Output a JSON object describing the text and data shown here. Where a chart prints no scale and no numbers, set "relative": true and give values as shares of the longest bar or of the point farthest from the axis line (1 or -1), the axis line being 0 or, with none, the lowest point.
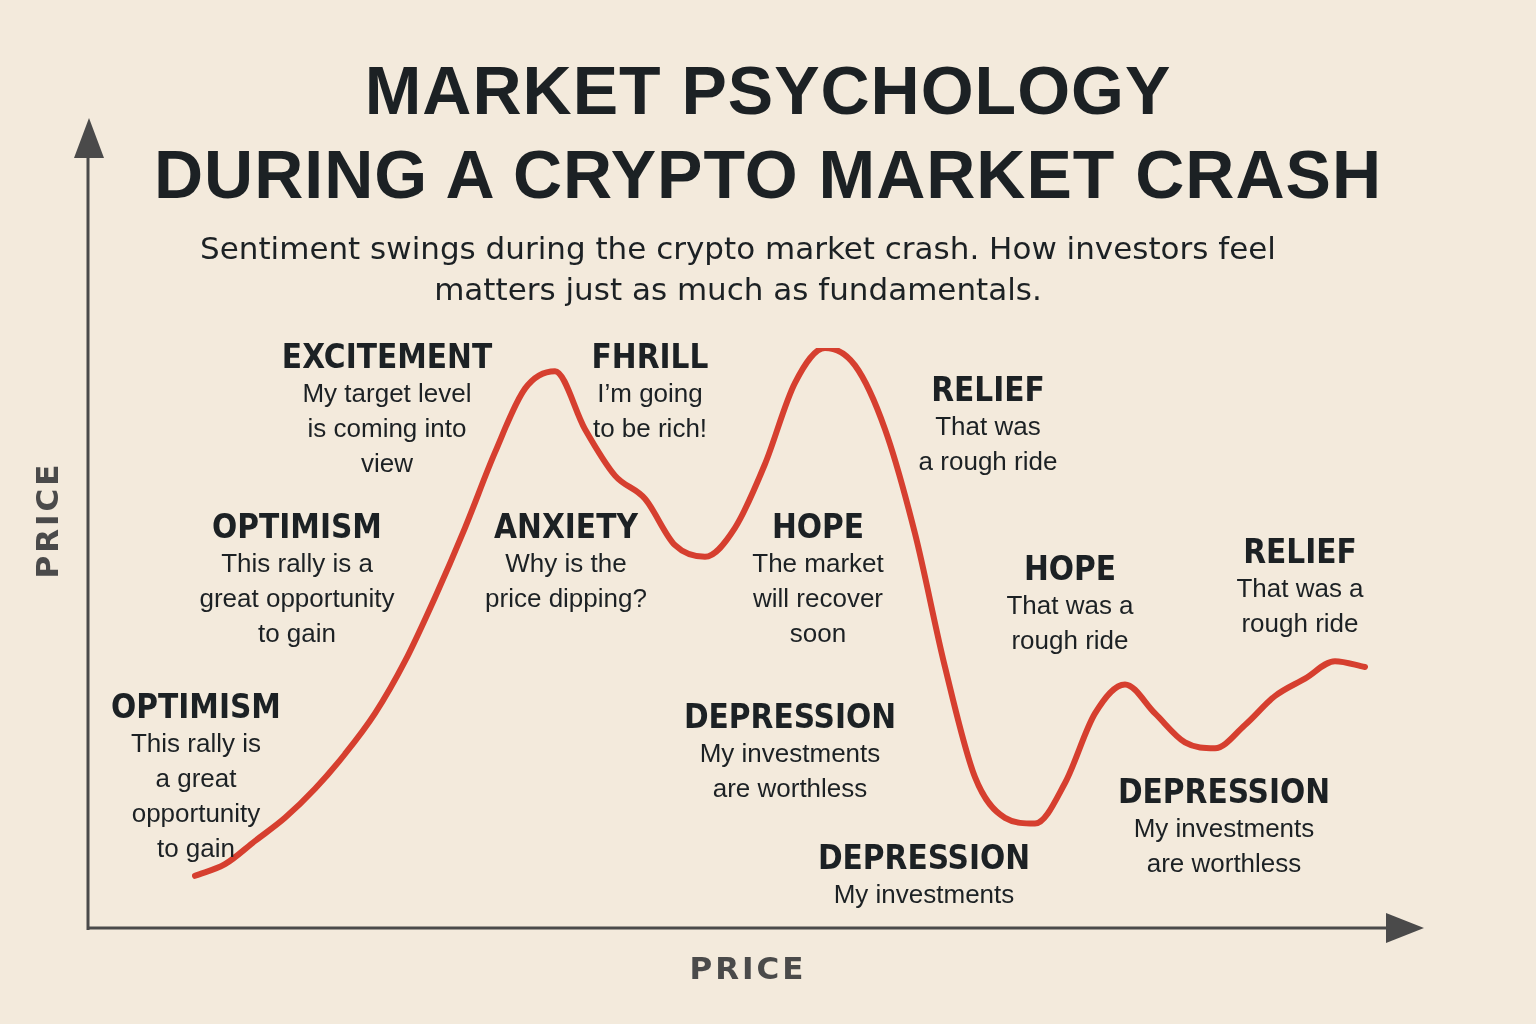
{
  "chart_data": {
    "type": "line",
    "title": "MARKET PSYCHOLOGY\nDURING A CRYPTO MARKET CRASH",
    "subtitle": "Sentiment swings during the crypto market crash. How investors feel\nmatters just as much as fundamentals.",
    "xlabel": "PRICE",
    "ylabel": "PRICE",
    "relative": true,
    "marker": "none",
    "color": "#d63f2f",
    "categories": [
      null,
      null,
      null,
      null,
      null,
      null,
      null,
      null,
      null,
      null,
      null,
      null,
      null,
      null,
      null,
      null,
      null,
      null,
      null,
      null,
      null,
      null,
      null,
      null,
      null,
      null,
      null,
      null,
      null,
      null,
      null,
      null,
      null,
      null,
      null,
      null,
      null,
      null,
      null,
      null
    ],
    "values": [
      0.09,
      0.11,
      0.15,
      0.19,
      0.24,
      0.3,
      0.37,
      0.46,
      0.57,
      0.69,
      0.82,
      0.93,
      0.96,
      0.86,
      0.78,
      0.74,
      0.66,
      0.64,
      0.69,
      0.8,
      0.94,
      1,
      0.97,
      0.86,
      0.68,
      0.45,
      0.26,
      0.19,
      0.18,
      0.25,
      0.37,
      0.42,
      0.37,
      0.32,
      0.31,
      0.35,
      0.4,
      0.43,
      0.46,
      0.45
    ],
    "annotations": [
      "OPTIMISM\nThis rally is\na great\nopportunity\nto gain",
      "OPTIMISM\nThis rally is a\ngreat opportunity\nto gain",
      "EXCITEMENT\nMy target level\nis coming into\nview",
      "FHRILL\nI’m going\nto be rich!",
      "ANXIETY\nWhy is the\nprice dipping?",
      "HOPE\nThe market\nwill recover\nsoon",
      "RELIEF\nThat was\na rough ride",
      "DEPRESSION\nMy investments\nare worthless",
      "DEPRESSION\nMy investments",
      "HOPE\nThat was a\nrough ride",
      "RELIEF\nThat was a\nrough ride",
      "DEPRESSION\nMy investments\nare worthless"
    ]
  }
}
